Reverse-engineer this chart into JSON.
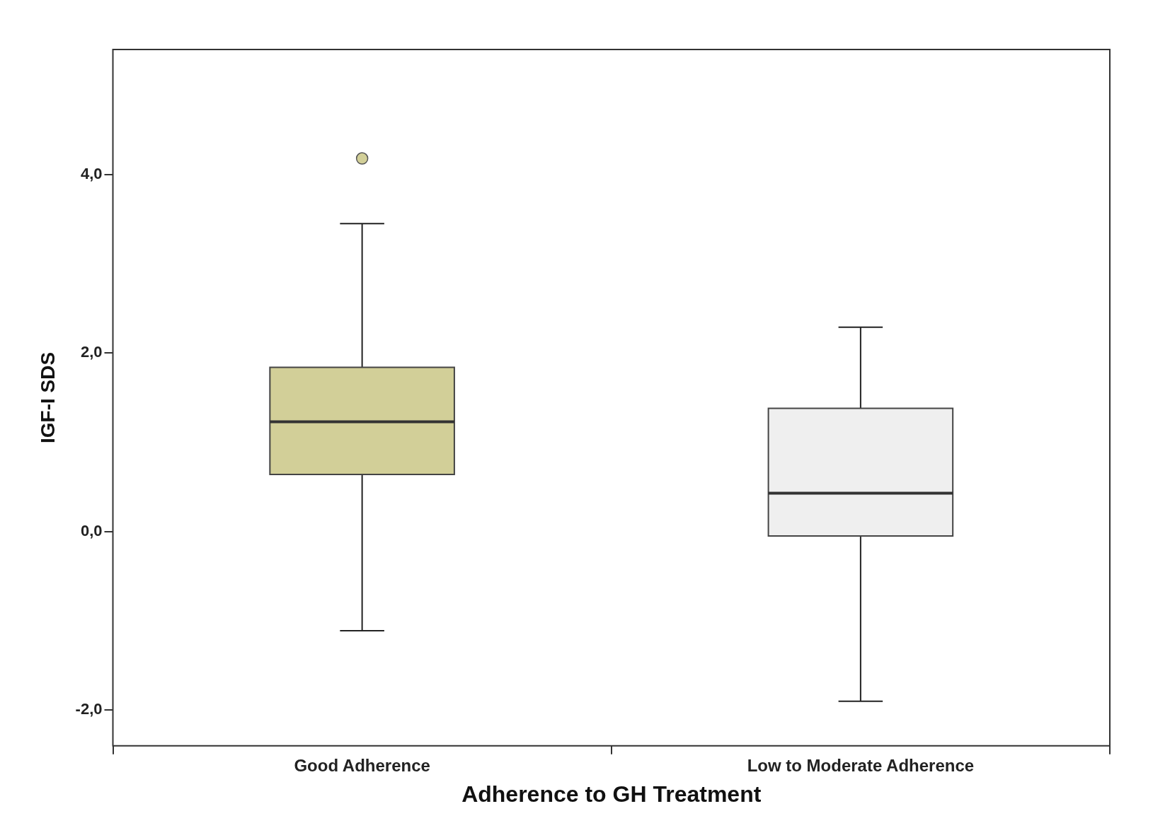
{
  "chart_data": {
    "type": "box",
    "xlabel": "Adherence to GH Treatment",
    "ylabel": "IGF-I SDS",
    "categories": [
      "Good Adherence",
      "Low to Moderate Adherence"
    ],
    "colors": [
      "#d2cf98",
      "#efefef"
    ],
    "boxes": [
      {
        "low": -1.11,
        "q1": 0.64,
        "median": 1.23,
        "q3": 1.84,
        "high": 3.45,
        "outliers": [
          4.18
        ]
      },
      {
        "low": -1.9,
        "q1": -0.05,
        "median": 0.43,
        "q3": 1.38,
        "high": 2.29
      }
    ],
    "ylim": [
      -2.4,
      5.4
    ],
    "yticks": [
      {
        "value": -2,
        "label": "-2,0"
      },
      {
        "value": 0,
        "label": "0,0"
      },
      {
        "value": 2,
        "label": "2,0"
      },
      {
        "value": 4,
        "label": "4,0"
      }
    ],
    "grid": false,
    "legend": false
  }
}
